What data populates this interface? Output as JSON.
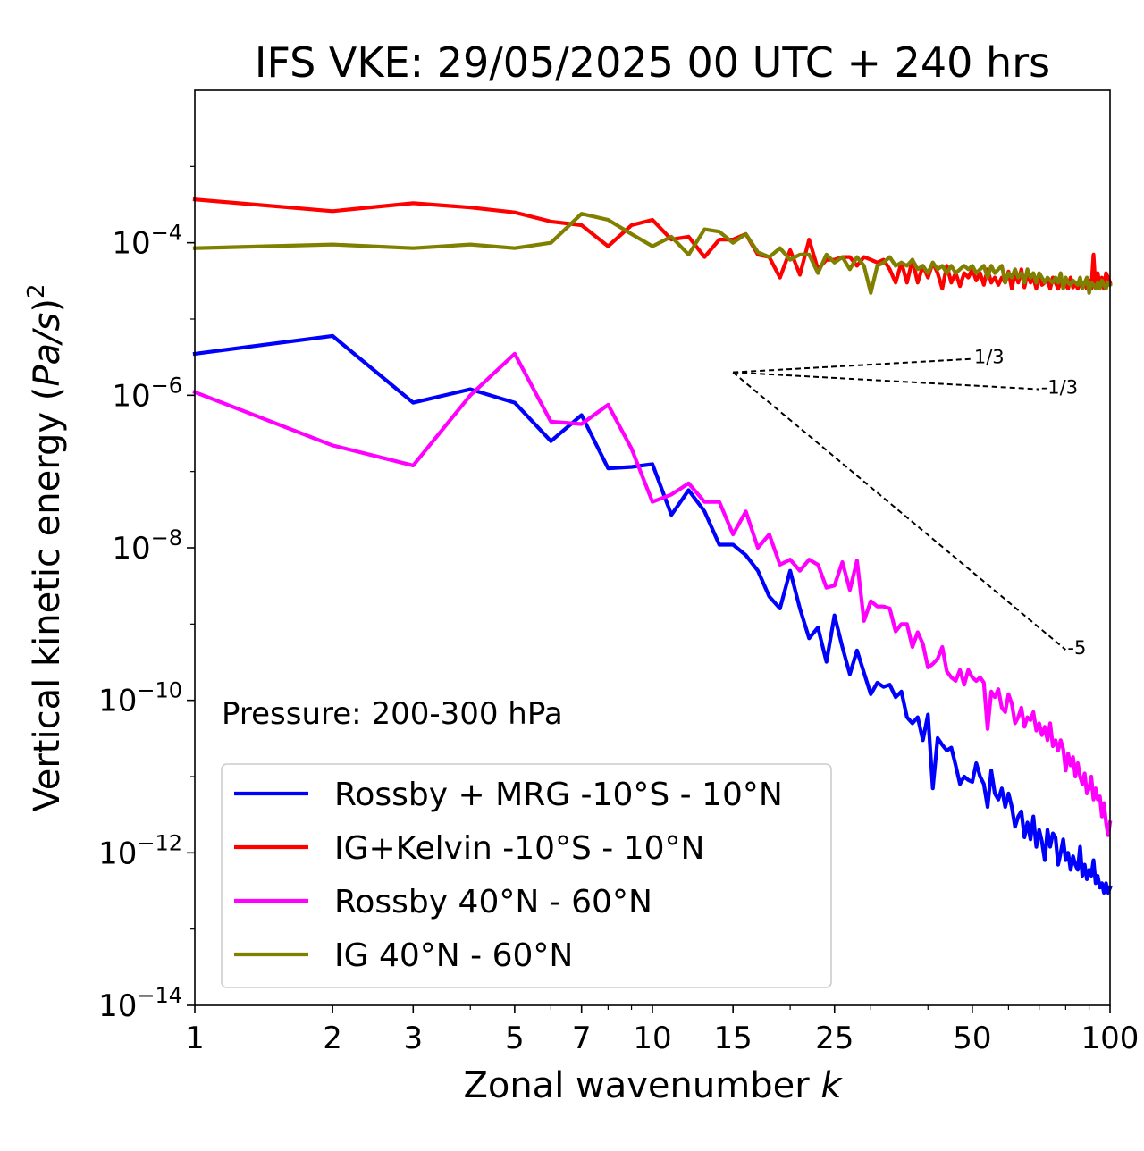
{
  "chart_data": {
    "type": "line",
    "title": "IFS VKE: 29/05/2025 00 UTC + 240 hrs",
    "xlabel": "Zonal wavenumber",
    "xlabel_var": "k",
    "ylabel_prefix": "Vertical kinetic energy (",
    "ylabel_var": "Pa/s",
    "ylabel_suffix": ")",
    "ylabel_exp": "2",
    "x_scale": "log",
    "y_scale": "log",
    "xlim": [
      1,
      100
    ],
    "ylim": [
      1e-14,
      0.01
    ],
    "x_ticks": [
      1,
      2,
      3,
      5,
      7,
      10,
      15,
      25,
      50,
      100
    ],
    "x_tick_labels": [
      "1",
      "2",
      "3",
      "5",
      "7",
      "10",
      "15",
      "25",
      "50",
      "100"
    ],
    "y_ticks": [
      1e-14,
      1e-12,
      1e-10,
      1e-08,
      1e-06,
      0.0001
    ],
    "y_tick_base": "10",
    "y_tick_exps": [
      "−14",
      "−12",
      "−10",
      "−8",
      "−6",
      "−4"
    ],
    "grid": false,
    "legend_position": "lower-left",
    "annotation": "Pressure: 200-300 hPa",
    "series": [
      {
        "name": "Rossby + MRG -10°S - 10°N",
        "color": "#0000ff",
        "x": [
          1,
          2,
          3,
          4,
          5,
          6,
          7,
          8,
          9,
          10,
          11,
          12,
          13,
          14,
          15,
          16,
          17,
          18,
          19,
          20,
          21,
          22,
          23,
          24,
          25,
          26,
          27,
          28,
          29,
          30,
          31,
          32,
          33,
          34,
          35,
          36,
          37,
          38,
          39,
          40,
          41,
          42,
          43,
          44,
          45,
          46,
          47,
          48,
          49,
          50,
          51,
          52,
          53,
          54,
          55,
          56,
          57,
          58,
          59,
          60,
          61,
          62,
          63,
          64,
          65,
          66,
          67,
          68,
          69,
          70,
          71,
          72,
          73,
          74,
          75,
          76,
          77,
          78,
          79,
          80,
          81,
          82,
          83,
          84,
          85,
          86,
          87,
          88,
          89,
          90,
          91,
          92,
          93,
          94,
          95,
          96,
          97,
          98,
          99,
          100
        ],
        "y": [
          3.5e-06,
          6e-06,
          8e-07,
          1.2e-06,
          8e-07,
          2.5e-07,
          5.5e-07,
          1.1e-07,
          1.15e-07,
          1.25e-07,
          2.7e-08,
          5.7e-08,
          3e-08,
          1.1e-08,
          1.1e-08,
          8e-09,
          5e-09,
          2.3e-09,
          1.6e-09,
          5e-09,
          1.6e-09,
          6.5e-10,
          9e-10,
          3.2e-10,
          1.3e-09,
          5e-10,
          2.2e-10,
          4.5e-10,
          2.3e-10,
          1.2e-10,
          1.7e-10,
          1.5e-10,
          1.6e-10,
          1.1e-10,
          1.3e-10,
          6e-11,
          5e-11,
          6e-11,
          3e-11,
          6.5e-11,
          7e-12,
          3.2e-11,
          2.6e-11,
          2.2e-11,
          2.4e-11,
          1.4e-11,
          8e-12,
          1e-11,
          9e-12,
          8.5e-12,
          1.5e-11,
          1e-11,
          8e-12,
          4e-12,
          1.2e-11,
          6e-12,
          5e-12,
          7e-12,
          4e-12,
          6e-12,
          4e-12,
          2.2e-12,
          3e-12,
          3.5e-12,
          1.6e-12,
          2.5e-12,
          1.5e-12,
          3e-12,
          1.2e-12,
          2e-12,
          1.4e-12,
          8e-13,
          2e-12,
          1.2e-12,
          1.8e-12,
          1.6e-12,
          7e-13,
          1e-12,
          1.5e-12,
          8e-13,
          1e-12,
          6e-13,
          9e-13,
          7e-13,
          6e-13,
          1.2e-12,
          5e-13,
          7e-13,
          4.5e-13,
          6e-13,
          5e-13,
          8e-13,
          4e-13,
          5e-13,
          3.5e-13,
          4e-13,
          3e-13,
          4e-13,
          3e-13,
          3.5e-13
        ]
      },
      {
        "name": "IG+Kelvin -10°S - 10°N",
        "color": "#ff0000",
        "x": [
          1,
          2,
          3,
          4,
          5,
          6,
          7,
          8,
          9,
          10,
          11,
          12,
          13,
          14,
          15,
          16,
          17,
          18,
          19,
          20,
          21,
          22,
          23,
          24,
          25,
          26,
          27,
          28,
          29,
          30,
          31,
          32,
          33,
          34,
          35,
          36,
          37,
          38,
          39,
          40,
          41,
          42,
          43,
          44,
          45,
          46,
          47,
          48,
          49,
          50,
          51,
          52,
          53,
          54,
          55,
          56,
          57,
          58,
          59,
          60,
          61,
          62,
          63,
          64,
          65,
          66,
          67,
          68,
          69,
          70,
          71,
          72,
          73,
          74,
          75,
          76,
          77,
          78,
          79,
          80,
          81,
          82,
          83,
          84,
          85,
          86,
          87,
          88,
          89,
          90,
          91,
          92,
          93,
          94,
          95,
          96,
          97,
          98,
          99,
          100
        ],
        "y": [
          0.00037,
          0.00026,
          0.00033,
          0.00029,
          0.00025,
          0.00019,
          0.00017,
          9e-05,
          0.00017,
          0.0002,
          0.00011,
          0.00012,
          6.5e-05,
          0.00011,
          0.00011,
          0.00013,
          7e-05,
          6.5e-05,
          3.5e-05,
          8e-05,
          3.8e-05,
          0.00011,
          4.5e-05,
          6e-05,
          6e-05,
          6.5e-05,
          6.5e-05,
          5e-05,
          6.5e-05,
          6e-05,
          5.5e-05,
          6e-05,
          4.5e-05,
          3e-05,
          5.5e-05,
          3e-05,
          6e-05,
          3e-05,
          5e-05,
          3.5e-05,
          5.5e-05,
          4e-05,
          2.5e-05,
          5e-05,
          3e-05,
          4e-05,
          2.7e-05,
          4e-05,
          3.5e-05,
          4.5e-05,
          3.2e-05,
          4e-05,
          2.8e-05,
          4.5e-05,
          3e-05,
          3.5e-05,
          2.8e-05,
          3.5e-05,
          3e-05,
          4.2e-05,
          2.5e-05,
          4e-05,
          3e-05,
          4.5e-05,
          2.6e-05,
          4e-05,
          3e-05,
          3.5e-05,
          2.5e-05,
          3.8e-05,
          2.8e-05,
          3e-05,
          3.2e-05,
          2.5e-05,
          3.5e-05,
          3e-05,
          2.5e-05,
          3e-05,
          3e-05,
          2.8e-05,
          2.5e-05,
          3.5e-05,
          2.6e-05,
          3e-05,
          2.5e-05,
          3e-05,
          2.8e-05,
          3e-05,
          2.5e-05,
          3.2e-05,
          2.5e-05,
          7e-05,
          2.5e-05,
          4e-05,
          2.8e-05,
          3.5e-05,
          2.5e-05,
          4e-05,
          3.5e-05,
          3e-05
        ]
      },
      {
        "name": "Rossby 40°N - 60°N",
        "color": "#ff00ff",
        "x": [
          1,
          2,
          3,
          4,
          5,
          6,
          7,
          8,
          9,
          10,
          11,
          12,
          13,
          14,
          15,
          16,
          17,
          18,
          19,
          20,
          21,
          22,
          23,
          24,
          25,
          26,
          27,
          28,
          29,
          30,
          31,
          32,
          33,
          34,
          35,
          36,
          37,
          38,
          39,
          40,
          41,
          42,
          43,
          44,
          45,
          46,
          47,
          48,
          49,
          50,
          51,
          52,
          53,
          54,
          55,
          56,
          57,
          58,
          59,
          60,
          61,
          62,
          63,
          64,
          65,
          66,
          67,
          68,
          69,
          70,
          71,
          72,
          73,
          74,
          75,
          76,
          77,
          78,
          79,
          80,
          81,
          82,
          83,
          84,
          85,
          86,
          87,
          88,
          89,
          90,
          91,
          92,
          93,
          94,
          95,
          96,
          97,
          98,
          99,
          100
        ],
        "y": [
          1.1e-06,
          2.2e-07,
          1.2e-07,
          1e-06,
          3.5e-06,
          4.5e-07,
          4.2e-07,
          7.5e-07,
          2e-07,
          4e-08,
          5e-08,
          7e-08,
          4e-08,
          4e-08,
          1.5e-08,
          3e-08,
          1e-08,
          1.5e-08,
          6e-09,
          7e-09,
          5e-09,
          7e-09,
          6e-09,
          3e-09,
          3.2e-09,
          6.5e-09,
          2.8e-09,
          6.8e-09,
          1.1e-09,
          2e-09,
          1.7e-09,
          1.7e-09,
          1.6e-09,
          8e-10,
          1e-09,
          1e-09,
          5e-10,
          7.8e-10,
          5.5e-10,
          2.7e-10,
          3e-10,
          3.5e-10,
          5e-10,
          2.4e-10,
          2e-10,
          1.8e-10,
          2.5e-10,
          1.6e-10,
          2.5e-10,
          2e-10,
          1.8e-10,
          2e-10,
          1.7e-10,
          4.2e-11,
          1.3e-10,
          1.1e-10,
          1.4e-10,
          8e-11,
          7e-11,
          1.2e-10,
          9e-11,
          5e-11,
          6e-11,
          8e-11,
          4.5e-11,
          6e-11,
          5.5e-11,
          7e-11,
          4e-11,
          5e-11,
          3.5e-11,
          4.5e-11,
          3e-11,
          5e-11,
          2.5e-11,
          3e-11,
          2.2e-11,
          3e-11,
          2.3e-11,
          1.2e-11,
          2e-11,
          1.4e-11,
          1.8e-11,
          1e-11,
          1.5e-11,
          1e-11,
          8e-12,
          1.1e-11,
          6e-12,
          7e-12,
          1e-11,
          5e-12,
          7e-12,
          5e-12,
          5.5e-12,
          3e-12,
          4.5e-12,
          2.5e-12,
          1.7e-12,
          2.5e-12
        ]
      },
      {
        "name": "IG 40°N - 60°N",
        "color": "#808000",
        "x": [
          1,
          2,
          3,
          4,
          5,
          6,
          7,
          8,
          9,
          10,
          11,
          12,
          13,
          14,
          15,
          16,
          17,
          18,
          19,
          20,
          21,
          22,
          23,
          24,
          25,
          26,
          27,
          28,
          29,
          30,
          31,
          32,
          33,
          34,
          35,
          36,
          37,
          38,
          39,
          40,
          41,
          42,
          43,
          44,
          45,
          46,
          47,
          48,
          49,
          50,
          51,
          52,
          53,
          54,
          55,
          56,
          57,
          58,
          59,
          60,
          61,
          62,
          63,
          64,
          65,
          66,
          67,
          68,
          69,
          70,
          71,
          72,
          73,
          74,
          75,
          76,
          77,
          78,
          79,
          80,
          81,
          82,
          83,
          84,
          85,
          86,
          87,
          88,
          89,
          90,
          91,
          92,
          93,
          94,
          95,
          96,
          97,
          98,
          99,
          100
        ],
        "y": [
          8.5e-05,
          9.5e-05,
          8.5e-05,
          9.5e-05,
          8.5e-05,
          0.0001,
          0.00024,
          0.0002,
          0.00013,
          9e-05,
          0.00012,
          7e-05,
          0.00015,
          0.00014,
          0.0001,
          0.00013,
          7.5e-05,
          6.5e-05,
          8.5e-05,
          6e-05,
          7e-05,
          7e-05,
          4e-05,
          7e-05,
          5.5e-05,
          6.5e-05,
          4.5e-05,
          6.5e-05,
          5e-05,
          2.2e-05,
          5e-05,
          5.5e-05,
          6.5e-05,
          5e-05,
          5.5e-05,
          5e-05,
          6e-05,
          4.5e-05,
          5e-05,
          4e-05,
          5.5e-05,
          4.5e-05,
          5e-05,
          4e-05,
          5e-05,
          4e-05,
          4.5e-05,
          5e-05,
          4.5e-05,
          5e-05,
          4e-05,
          4.5e-05,
          5e-05,
          3.5e-05,
          5e-05,
          4e-05,
          4.5e-05,
          5e-05,
          3e-05,
          4e-05,
          3.5e-05,
          4.5e-05,
          3.5e-05,
          4e-05,
          3e-05,
          4.5e-05,
          3.5e-05,
          4e-05,
          3e-05,
          4e-05,
          3.5e-05,
          3e-05,
          3.5e-05,
          3.2e-05,
          3e-05,
          3.5e-05,
          3e-05,
          4e-05,
          2.5e-05,
          3.5e-05,
          3e-05,
          2.8e-05,
          3.2e-05,
          3e-05,
          2.8e-05,
          3.5e-05,
          2.5e-05,
          3e-05,
          3.5e-05,
          2.2e-05,
          3e-05,
          2.8e-05,
          2.5e-05,
          3e-05,
          2.5e-05,
          3.2e-05,
          2.8e-05,
          2.5e-05,
          3e-05,
          2.8e-05
        ]
      }
    ],
    "reference_slopes": [
      {
        "label": "1/3",
        "x": [
          15,
          50
        ],
        "y": [
          2e-06,
          3e-06
        ]
      },
      {
        "label": "-1/3",
        "x": [
          15,
          70
        ],
        "y": [
          2e-06,
          1.2e-06
        ]
      },
      {
        "label": "-5",
        "x": [
          15,
          80
        ],
        "y": [
          2e-06,
          4.6e-10
        ]
      }
    ]
  }
}
